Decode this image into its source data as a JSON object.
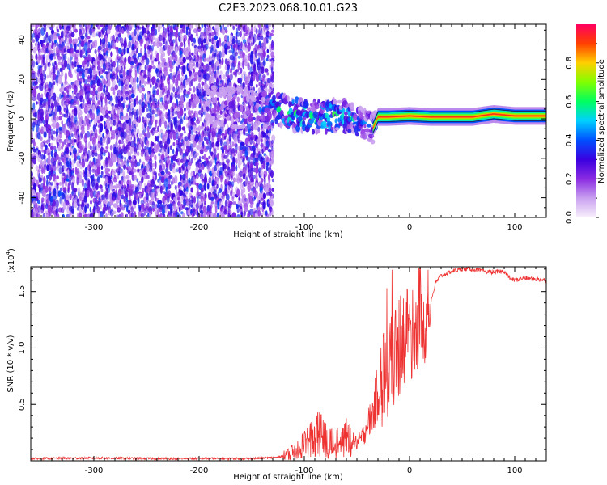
{
  "title": "C2E3.2023.068.10.01.G23",
  "chart_data": [
    {
      "type": "heatmap",
      "name": "spectrogram",
      "xlabel": "Height of straight line (km)",
      "ylabel": "Frequency (Hz)",
      "xlim": [
        -360,
        130
      ],
      "ylim": [
        -50,
        48
      ],
      "x_ticks": [
        -300,
        -200,
        -100,
        0,
        100
      ],
      "y_ticks": [
        -40,
        -20,
        0,
        20,
        40
      ],
      "colorbar": {
        "label": "Normalized spectral amplitude",
        "range": [
          0.0,
          1.0
        ],
        "ticks": [
          0.0,
          0.2,
          0.4,
          0.6,
          0.8
        ],
        "colormap": [
          "#f8f0fc",
          "#c9a0f0",
          "#8a2be2",
          "#3a00e0",
          "#0050ff",
          "#00d0ff",
          "#00ff60",
          "#80ff00",
          "#ffd000",
          "#ff4000",
          "#ff0060"
        ]
      },
      "noise_region_x": [
        -360,
        -130
      ],
      "signal_track": {
        "x": [
          -190,
          -170,
          -150,
          -130,
          -110,
          -90,
          -70,
          -55,
          -40,
          -35,
          -30,
          -20,
          0,
          20,
          40,
          60,
          80,
          100,
          130
        ],
        "freq": [
          7,
          6,
          5,
          6,
          2,
          1,
          2,
          0,
          -3,
          -5,
          1,
          1,
          1.5,
          1,
          1,
          1,
          2.5,
          1.5,
          1.5
        ],
        "amplitude": [
          0.2,
          0.25,
          0.3,
          0.5,
          0.55,
          0.6,
          0.55,
          0.5,
          0.4,
          0.35,
          0.8,
          0.85,
          0.9,
          0.85,
          0.85,
          0.85,
          0.85,
          0.85,
          0.85
        ]
      }
    },
    {
      "type": "line",
      "name": "snr",
      "xlabel": "Height of straight line (km)",
      "ylabel": "SNR (10 * v/v)",
      "y_multiplier_label": "(x10",
      "y_multiplier_exp": "4",
      "xlim": [
        -360,
        130
      ],
      "ylim": [
        0,
        1.72
      ],
      "x_ticks": [
        -300,
        -200,
        -100,
        0,
        100
      ],
      "y_ticks": [
        0.5,
        1.0,
        1.5
      ],
      "y_tick_labels": [
        "0.5",
        "1.0",
        "1.5"
      ],
      "color": "#ee3333",
      "series": [
        {
          "x": [
            -360,
            -300,
            -250,
            -200,
            -150,
            -125,
            -115,
            -105,
            -100,
            -90,
            -85,
            -80,
            -70,
            -60,
            -50,
            -45,
            -40,
            -35,
            -30,
            -25,
            -20,
            -15,
            -10,
            -5,
            0,
            5,
            10,
            15,
            20,
            25,
            30,
            40,
            50,
            60,
            70,
            80,
            90,
            95,
            100,
            110,
            120,
            130
          ],
          "y": [
            0.02,
            0.025,
            0.02,
            0.02,
            0.02,
            0.03,
            0.06,
            0.1,
            0.15,
            0.22,
            0.25,
            0.18,
            0.15,
            0.2,
            0.15,
            0.2,
            0.3,
            0.4,
            0.6,
            0.75,
            0.85,
            0.9,
            1.0,
            1.1,
            1.15,
            1.2,
            1.25,
            1.3,
            1.4,
            1.58,
            1.64,
            1.68,
            1.7,
            1.7,
            1.68,
            1.67,
            1.68,
            1.62,
            1.6,
            1.62,
            1.61,
            1.6
          ]
        }
      ]
    }
  ]
}
